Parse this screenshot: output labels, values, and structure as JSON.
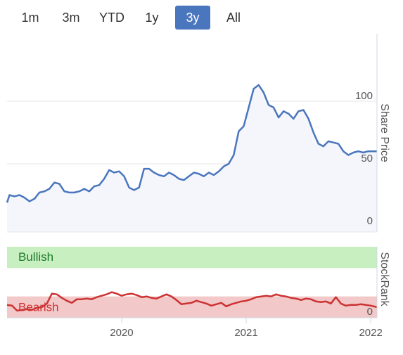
{
  "range_selector": {
    "buttons": [
      {
        "label": "1m",
        "active": false
      },
      {
        "label": "3m",
        "active": false
      },
      {
        "label": "YTD",
        "active": false
      },
      {
        "label": "1y",
        "active": false
      },
      {
        "label": "3y",
        "active": true
      },
      {
        "label": "All",
        "active": false
      }
    ],
    "active_color": "#4a76bd"
  },
  "chart_data": [
    {
      "type": "line",
      "title": "",
      "ylabel": "Share Price",
      "xlabel": "",
      "xlim": [
        2019.08,
        2022.05
      ],
      "ylim": [
        0,
        105
      ],
      "y_ticks": [
        0,
        50,
        100
      ],
      "x_ticks": [
        "2020",
        "2021",
        "2022"
      ],
      "x_tick_values": [
        2020.0,
        2021.0,
        2022.0
      ],
      "grid": true,
      "line_color": "#4a76bd",
      "fill_color": "#f4f6fb",
      "series": [
        {
          "x": [
            2019.08,
            2019.1,
            2019.14,
            2019.18,
            2019.22,
            2019.26,
            2019.3,
            2019.34,
            2019.38,
            2019.42,
            2019.46,
            2019.5,
            2019.54,
            2019.58,
            2019.62,
            2019.66,
            2019.7,
            2019.74,
            2019.78,
            2019.82,
            2019.86,
            2019.9,
            2019.94,
            2019.98,
            2020.02,
            2020.06,
            2020.1,
            2020.14,
            2020.18,
            2020.22,
            2020.26,
            2020.3,
            2020.34,
            2020.38,
            2020.42,
            2020.46,
            2020.5,
            2020.54,
            2020.58,
            2020.62,
            2020.66,
            2020.7,
            2020.74,
            2020.78,
            2020.82,
            2020.86,
            2020.9,
            2020.94,
            2020.98,
            2021.02,
            2021.06,
            2021.1,
            2021.14,
            2021.18,
            2021.22,
            2021.26,
            2021.3,
            2021.34,
            2021.38,
            2021.42,
            2021.46,
            2021.5,
            2021.54,
            2021.58,
            2021.62,
            2021.66,
            2021.7,
            2021.74,
            2021.78,
            2021.82,
            2021.86,
            2021.9,
            2021.94,
            2021.98,
            2022.02,
            2022.05
          ],
          "y": [
            19,
            25,
            24,
            25,
            23,
            20,
            22,
            27,
            28,
            30,
            35,
            34,
            28,
            27,
            27,
            28,
            30,
            28,
            32,
            33,
            38,
            45,
            43,
            44,
            40,
            31,
            29,
            31,
            46,
            46,
            43,
            41,
            40,
            43,
            41,
            38,
            37,
            40,
            43,
            42,
            40,
            43,
            41,
            44,
            48,
            50,
            57,
            76,
            80,
            95,
            110,
            113,
            107,
            97,
            95,
            87,
            92,
            90,
            86,
            92,
            93,
            86,
            75,
            66,
            64,
            68,
            67,
            66,
            60,
            57,
            59,
            60,
            59,
            60,
            60,
            60
          ]
        }
      ]
    },
    {
      "type": "line",
      "title": "",
      "ylabel": "StockRank",
      "xlim": [
        2019.08,
        2022.05
      ],
      "ylim": [
        0,
        100
      ],
      "y_ticks": [
        0
      ],
      "bands": [
        {
          "label": "Bullish",
          "from": 70,
          "to": 100,
          "color": "#c8efc0",
          "text_color": "#1a7a2a"
        },
        {
          "label": "Bearish",
          "from": 0,
          "to": 30,
          "color": "#f2c8c8",
          "text_color": "#cc3333"
        }
      ],
      "line_color": "#cc3333",
      "series": [
        {
          "x": [
            2019.08,
            2019.12,
            2019.16,
            2019.2,
            2019.24,
            2019.28,
            2019.32,
            2019.36,
            2019.4,
            2019.44,
            2019.48,
            2019.52,
            2019.56,
            2019.6,
            2019.64,
            2019.68,
            2019.72,
            2019.76,
            2019.8,
            2019.84,
            2019.88,
            2019.92,
            2019.96,
            2020.0,
            2020.04,
            2020.08,
            2020.12,
            2020.16,
            2020.2,
            2020.24,
            2020.28,
            2020.32,
            2020.36,
            2020.4,
            2020.44,
            2020.48,
            2020.52,
            2020.56,
            2020.6,
            2020.64,
            2020.68,
            2020.72,
            2020.76,
            2020.8,
            2020.84,
            2020.88,
            2020.92,
            2020.96,
            2021.0,
            2021.04,
            2021.08,
            2021.12,
            2021.16,
            2021.2,
            2021.24,
            2021.28,
            2021.32,
            2021.36,
            2021.4,
            2021.44,
            2021.48,
            2021.52,
            2021.56,
            2021.6,
            2021.64,
            2021.68,
            2021.72,
            2021.76,
            2021.8,
            2021.84,
            2021.88,
            2021.92,
            2021.96,
            2022.0,
            2022.05
          ],
          "y": [
            18,
            17,
            10,
            11,
            12,
            11,
            14,
            15,
            20,
            34,
            33,
            28,
            24,
            21,
            26,
            26,
            27,
            26,
            29,
            31,
            33,
            36,
            34,
            31,
            33,
            34,
            32,
            29,
            30,
            28,
            27,
            30,
            33,
            30,
            25,
            19,
            20,
            21,
            24,
            22,
            20,
            17,
            19,
            21,
            16,
            19,
            21,
            23,
            24,
            26,
            29,
            30,
            31,
            30,
            33,
            31,
            30,
            28,
            27,
            25,
            27,
            26,
            23,
            22,
            23,
            20,
            29,
            20,
            17,
            18,
            18,
            19,
            18,
            17,
            15
          ]
        }
      ]
    }
  ]
}
